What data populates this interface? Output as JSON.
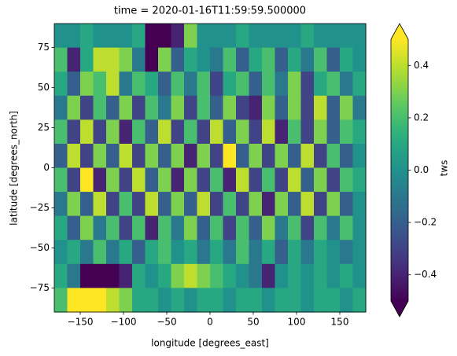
{
  "chart_data": {
    "type": "heatmap",
    "title": "time = 2020-01-16T11:59:59.500000",
    "x_label": "longitude [degrees_east]",
    "y_label": "latitude [degrees_north]",
    "colorbar_label": "tws",
    "cmap": "viridis",
    "colorbar_extend": "both",
    "clim": [
      -0.5,
      0.5
    ],
    "xlim": [
      -180,
      180
    ],
    "ylim": [
      -90,
      90
    ],
    "xticks": [
      {
        "value": -150,
        "label": "−150"
      },
      {
        "value": -100,
        "label": "−100"
      },
      {
        "value": -50,
        "label": "−50"
      },
      0,
      50,
      100,
      150
    ],
    "yticks": [
      {
        "value": -75,
        "label": "−75"
      },
      {
        "value": -50,
        "label": "−50"
      },
      {
        "value": -25,
        "label": "−25"
      },
      0,
      25,
      50,
      75
    ],
    "colorbar_ticks": [
      {
        "value": -0.4,
        "label": "−0.4"
      },
      {
        "value": -0.2,
        "label": "−0.2"
      },
      {
        "value": 0,
        "label": "0.0"
      },
      0.2,
      0.4
    ],
    "z": [
      [
        0,
        0,
        0.1,
        0,
        0,
        0,
        0.1,
        -0.5,
        -0.5,
        -0.4,
        0.3,
        0,
        0,
        0,
        0.1,
        0,
        0,
        0,
        0,
        0.1,
        0,
        0,
        0,
        0
      ],
      [
        0.2,
        -0.4,
        0.1,
        0.4,
        0.4,
        0.3,
        -0.1,
        -0.5,
        0.3,
        -0.2,
        0.1,
        0,
        -0.1,
        0.2,
        -0.2,
        0.1,
        0.2,
        -0.2,
        0.1,
        -0.1,
        0.2,
        -0.2,
        0.1,
        0
      ],
      [
        0.1,
        -0.2,
        0.3,
        0.2,
        0.4,
        -0.1,
        0.2,
        0.1,
        -0.2,
        0.2,
        -0.1,
        0.2,
        -0.3,
        0.1,
        0.2,
        -0.2,
        0.2,
        -0.1,
        0.3,
        -0.3,
        0.1,
        0.2,
        -0.1,
        0.1
      ],
      [
        -0.1,
        0.3,
        -0.3,
        0.2,
        -0.2,
        0.3,
        -0.3,
        0.2,
        -0.1,
        0.3,
        -0.3,
        0.2,
        -0.2,
        0.3,
        -0.3,
        -0.4,
        0.3,
        -0.2,
        0.3,
        -0.3,
        0.4,
        -0.2,
        0.3,
        -0.1
      ],
      [
        0.2,
        -0.3,
        0.4,
        -0.3,
        0.3,
        -0.4,
        0.2,
        -0.2,
        0.4,
        -0.3,
        0.2,
        -0.3,
        0.4,
        -0.2,
        0.3,
        -0.3,
        0.4,
        -0.4,
        0.2,
        -0.3,
        0.3,
        -0.2,
        0.2,
        0.1
      ],
      [
        -0.2,
        0.4,
        -0.3,
        0.3,
        -0.2,
        0.4,
        -0.3,
        0.3,
        -0.2,
        0.3,
        -0.4,
        0.3,
        -0.3,
        0.5,
        -0.2,
        0.3,
        -0.3,
        0.3,
        -0.2,
        0.4,
        -0.3,
        0.2,
        -0.2,
        0
      ],
      [
        0.2,
        -0.3,
        0.5,
        -0.4,
        0.3,
        -0.3,
        0.4,
        -0.2,
        0.3,
        -0.4,
        0.3,
        -0.3,
        0.2,
        -0.4,
        0.4,
        -0.3,
        0.2,
        -0.3,
        0.4,
        -0.2,
        0.3,
        -0.3,
        0.2,
        0.1
      ],
      [
        -0.1,
        0.3,
        -0.2,
        0.4,
        -0.3,
        0.2,
        -0.3,
        0.4,
        -0.2,
        0.3,
        -0.2,
        0.4,
        -0.3,
        0.2,
        -0.3,
        0.3,
        -0.4,
        0.3,
        -0.2,
        0.4,
        -0.3,
        0.3,
        -0.2,
        0
      ],
      [
        0.1,
        -0.2,
        0.3,
        -0.1,
        0.2,
        -0.3,
        0.2,
        -0.4,
        0.2,
        -0.1,
        0.3,
        -0.2,
        0.2,
        -0.3,
        0.2,
        -0.2,
        0.3,
        -0.1,
        0.2,
        -0.3,
        0.2,
        -0.1,
        0.2,
        0
      ],
      [
        0,
        0.1,
        -0.1,
        0.2,
        -0.1,
        0.1,
        -0.2,
        0.1,
        0.2,
        0,
        0.1,
        -0.1,
        0.1,
        -0.1,
        0.2,
        -0.1,
        0.1,
        -0.2,
        0.1,
        -0.1,
        0.1,
        0,
        -0.1,
        0
      ],
      [
        0.1,
        -0.1,
        -0.5,
        -0.5,
        -0.5,
        -0.4,
        0.1,
        0,
        0.1,
        0.3,
        0.4,
        0.3,
        0.2,
        0.1,
        0,
        -0.1,
        -0.4,
        0,
        0.1,
        0,
        0.1,
        0,
        0.1,
        0
      ],
      [
        0.2,
        0.5,
        0.5,
        0.5,
        0.4,
        0.3,
        0.1,
        0.1,
        0,
        0.1,
        0,
        0.1,
        0.1,
        0,
        0.1,
        0.1,
        0,
        0.1,
        0.1,
        0,
        0.1,
        0.1,
        0,
        0.1
      ]
    ]
  }
}
